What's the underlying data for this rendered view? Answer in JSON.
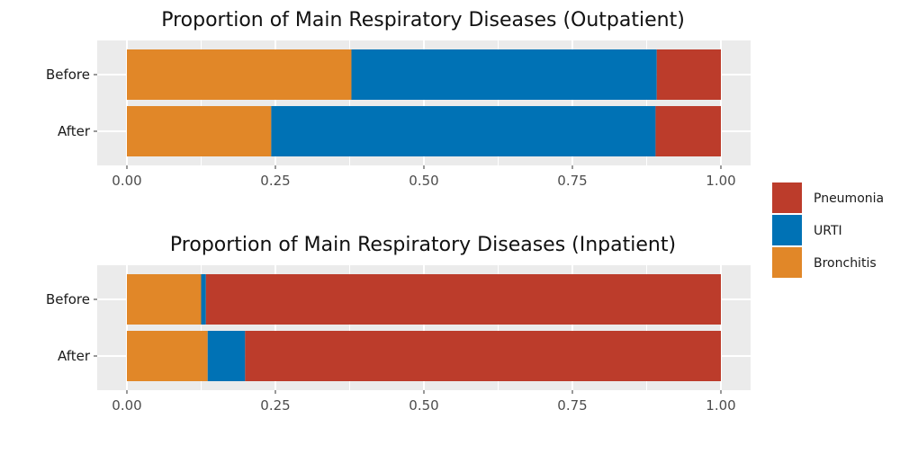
{
  "colors": {
    "Pneumonia": "#bc3c2b",
    "URTI": "#0072b5",
    "Bronchitis": "#e18728",
    "panel_bg": "#ebebeb",
    "grid": "#ffffff"
  },
  "legend": {
    "position": "right",
    "items": [
      "Pneumonia",
      "URTI",
      "Bronchitis"
    ]
  },
  "chart_data": [
    {
      "type": "bar",
      "orientation": "horizontal",
      "stacked": true,
      "title": "Proportion of Main Respiratory Diseases (Outpatient)",
      "categories": [
        "Before",
        "After"
      ],
      "x_ticks": [
        "0.00",
        "0.25",
        "0.50",
        "0.75",
        "1.00"
      ],
      "xlim": [
        0,
        1
      ],
      "grid": true,
      "series": [
        {
          "name": "Bronchitis",
          "values": [
            0.378,
            0.243
          ]
        },
        {
          "name": "URTI",
          "values": [
            0.514,
            0.647
          ]
        },
        {
          "name": "Pneumonia",
          "values": [
            0.108,
            0.11
          ]
        }
      ]
    },
    {
      "type": "bar",
      "orientation": "horizontal",
      "stacked": true,
      "title": "Proportion of Main Respiratory Diseases (Inpatient)",
      "categories": [
        "Before",
        "After"
      ],
      "x_ticks": [
        "0.00",
        "0.25",
        "0.50",
        "0.75",
        "1.00"
      ],
      "xlim": [
        0,
        1
      ],
      "grid": true,
      "series": [
        {
          "name": "Bronchitis",
          "values": [
            0.125,
            0.136
          ]
        },
        {
          "name": "URTI",
          "values": [
            0.008,
            0.063
          ]
        },
        {
          "name": "Pneumonia",
          "values": [
            0.867,
            0.801
          ]
        }
      ]
    }
  ]
}
